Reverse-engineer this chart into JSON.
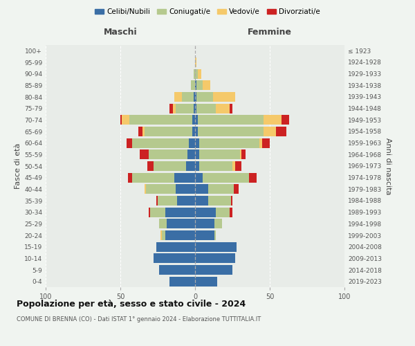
{
  "age_groups": [
    "0-4",
    "5-9",
    "10-14",
    "15-19",
    "20-24",
    "25-29",
    "30-34",
    "35-39",
    "40-44",
    "45-49",
    "50-54",
    "55-59",
    "60-64",
    "65-69",
    "70-74",
    "75-79",
    "80-84",
    "85-89",
    "90-94",
    "95-99",
    "100+"
  ],
  "birth_years": [
    "2019-2023",
    "2014-2018",
    "2009-2013",
    "2004-2008",
    "1999-2003",
    "1994-1998",
    "1989-1993",
    "1984-1988",
    "1979-1983",
    "1974-1978",
    "1969-1973",
    "1964-1968",
    "1959-1963",
    "1954-1958",
    "1949-1953",
    "1944-1948",
    "1939-1943",
    "1934-1938",
    "1929-1933",
    "1924-1928",
    "≤ 1923"
  ],
  "male": {
    "celibi": [
      17,
      24,
      28,
      26,
      20,
      19,
      20,
      12,
      13,
      14,
      6,
      5,
      4,
      2,
      2,
      1,
      1,
      0,
      0,
      0,
      0
    ],
    "coniugati": [
      0,
      0,
      0,
      0,
      2,
      5,
      10,
      13,
      20,
      28,
      22,
      26,
      38,
      32,
      42,
      12,
      8,
      3,
      1,
      0,
      0
    ],
    "vedovi": [
      0,
      0,
      0,
      0,
      1,
      0,
      0,
      0,
      1,
      0,
      0,
      0,
      0,
      1,
      5,
      2,
      5,
      0,
      0,
      0,
      0
    ],
    "divorziati": [
      0,
      0,
      0,
      0,
      0,
      0,
      1,
      1,
      0,
      3,
      4,
      6,
      4,
      3,
      1,
      2,
      0,
      0,
      0,
      0,
      0
    ]
  },
  "female": {
    "nubili": [
      15,
      25,
      27,
      28,
      13,
      13,
      14,
      9,
      9,
      5,
      3,
      3,
      3,
      2,
      2,
      1,
      1,
      1,
      0,
      0,
      0
    ],
    "coniugate": [
      0,
      0,
      0,
      0,
      1,
      5,
      9,
      15,
      17,
      31,
      22,
      27,
      40,
      44,
      44,
      13,
      11,
      4,
      2,
      0,
      0
    ],
    "vedove": [
      0,
      0,
      0,
      0,
      0,
      0,
      0,
      0,
      0,
      0,
      2,
      1,
      2,
      8,
      12,
      9,
      15,
      5,
      2,
      1,
      0
    ],
    "divorziate": [
      0,
      0,
      0,
      0,
      0,
      0,
      2,
      1,
      3,
      5,
      4,
      3,
      5,
      7,
      5,
      2,
      0,
      0,
      0,
      0,
      0
    ]
  },
  "colors": {
    "celibi": "#3a6ea5",
    "coniugati": "#b5c98e",
    "vedovi": "#f5c96a",
    "divorziati": "#cc2222"
  },
  "legend_labels": [
    "Celibi/Nubili",
    "Coniugati/e",
    "Vedovi/e",
    "Divorziati/e"
  ],
  "xlim": 100,
  "title": "Popolazione per età, sesso e stato civile - 2024",
  "subtitle": "COMUNE DI BRENNA (CO) - Dati ISTAT 1° gennaio 2024 - Elaborazione TUTTITALIA.IT",
  "ylabel_left": "Fasce di età",
  "ylabel_right": "Anni di nascita",
  "xlabel_left": "Maschi",
  "xlabel_right": "Femmine",
  "bg_color": "#f0f4f0",
  "plot_bg": "#e8ece8"
}
